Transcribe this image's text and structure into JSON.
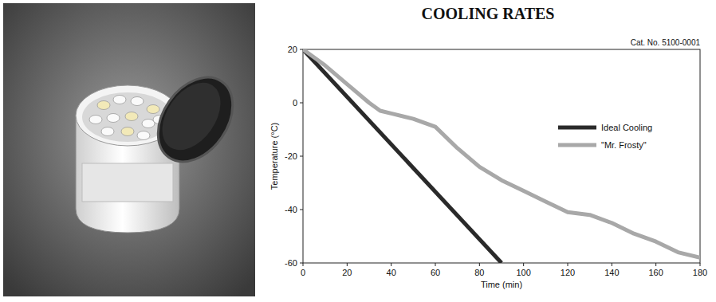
{
  "chart_data": {
    "type": "line",
    "title": "COOLING RATES",
    "subtitle": "Cat. No. 5100-0001",
    "x_label": "Time (min)",
    "y_label": "Temperature (°C)",
    "xlim": [
      0,
      180
    ],
    "xticks": [
      0,
      20,
      40,
      60,
      80,
      100,
      120,
      140,
      160,
      180
    ],
    "ylim": [
      -60,
      20
    ],
    "yticks": [
      -60,
      -40,
      -20,
      0,
      20
    ],
    "grid": false,
    "legend": "right",
    "series": [
      {
        "name": "Ideal Cooling",
        "color": "#2a2a2a",
        "x": [
          0,
          90
        ],
        "values": [
          20,
          -60
        ]
      },
      {
        "name": "\"Mr. Frosty\"",
        "color": "#a8a8a8",
        "x": [
          0,
          10,
          20,
          30,
          35,
          40,
          50,
          60,
          70,
          80,
          90,
          100,
          110,
          120,
          130,
          140,
          150,
          160,
          170,
          180
        ],
        "values": [
          20,
          14,
          7,
          0,
          -3,
          -4,
          -6,
          -9,
          -17,
          -24,
          -29,
          -33,
          -37,
          -41,
          -42,
          -45,
          -49,
          -52,
          -56,
          -58
        ]
      }
    ]
  }
}
